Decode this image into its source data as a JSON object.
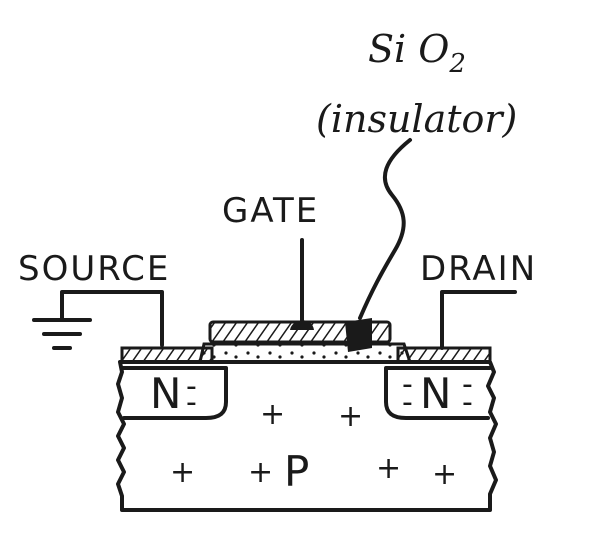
{
  "labels": {
    "oxide_formula": "Si O",
    "oxide_subscript": "2",
    "oxide_note": "(insulator)",
    "gate": "GATE",
    "source": "SOURCE",
    "drain": "DRAIN"
  },
  "regions": {
    "source_doping": "N",
    "drain_doping": "N",
    "substrate": "P",
    "minus_sign": "-",
    "plus_sign": "+"
  },
  "colors": {
    "ink": "#1a1a1a",
    "background": "#ffffff"
  }
}
